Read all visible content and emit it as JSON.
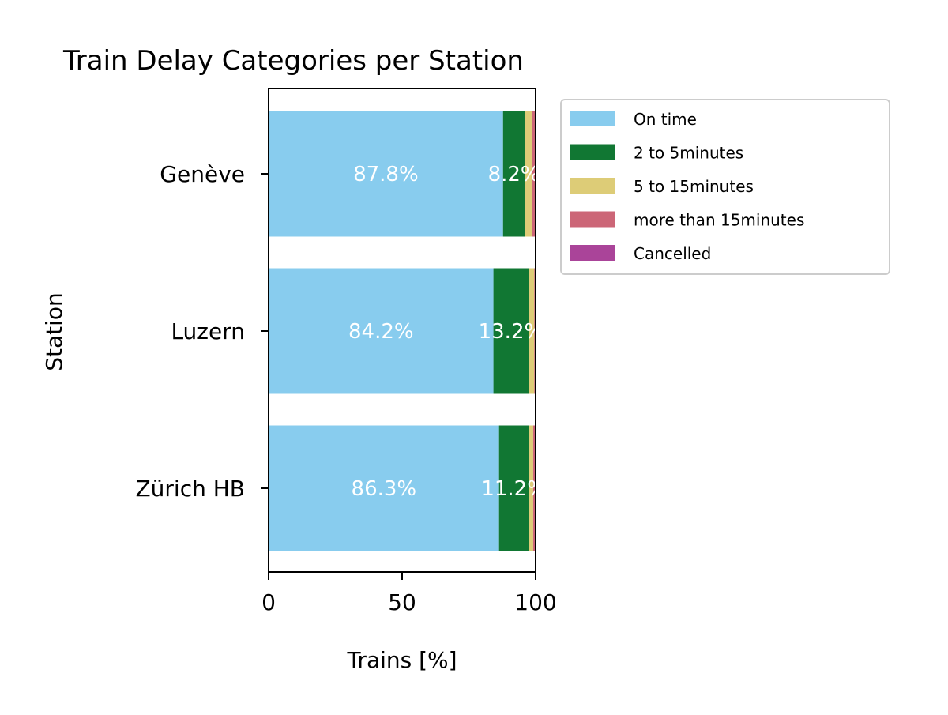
{
  "chart_data": {
    "type": "bar",
    "orientation": "horizontal",
    "stacked": true,
    "title": "Train Delay Categories per Station",
    "xlabel": "Trains [%]",
    "ylabel": "Station",
    "xlim": [
      0,
      100
    ],
    "xticks": [
      "0",
      "50",
      "100"
    ],
    "categories": [
      "Genève",
      "Luzern",
      "Zürich HB"
    ],
    "series": [
      {
        "name": "On time",
        "color": "#88CCEE",
        "values": [
          87.8,
          84.2,
          86.3
        ],
        "labels": [
          "87.8%",
          "84.2%",
          "86.3%"
        ]
      },
      {
        "name": "2 to 5minutes",
        "color": "#117733",
        "values": [
          8.2,
          13.2,
          11.2
        ],
        "labels": [
          "8.2%",
          "13.2%",
          "11.2%"
        ]
      },
      {
        "name": "5 to 15minutes",
        "color": "#DDCC77",
        "values": [
          2.7,
          2.1,
          1.6
        ],
        "labels": [
          "",
          "",
          ""
        ]
      },
      {
        "name": "more than 15minutes",
        "color": "#CC6677",
        "values": [
          1.1,
          0.4,
          0.7
        ],
        "labels": [
          "",
          "",
          ""
        ]
      },
      {
        "name": "Cancelled",
        "color": "#AA4499",
        "values": [
          0.2,
          0.1,
          0.2
        ],
        "labels": [
          "",
          "",
          ""
        ]
      }
    ],
    "legend_position": "right, outside plot area",
    "grid": false
  }
}
